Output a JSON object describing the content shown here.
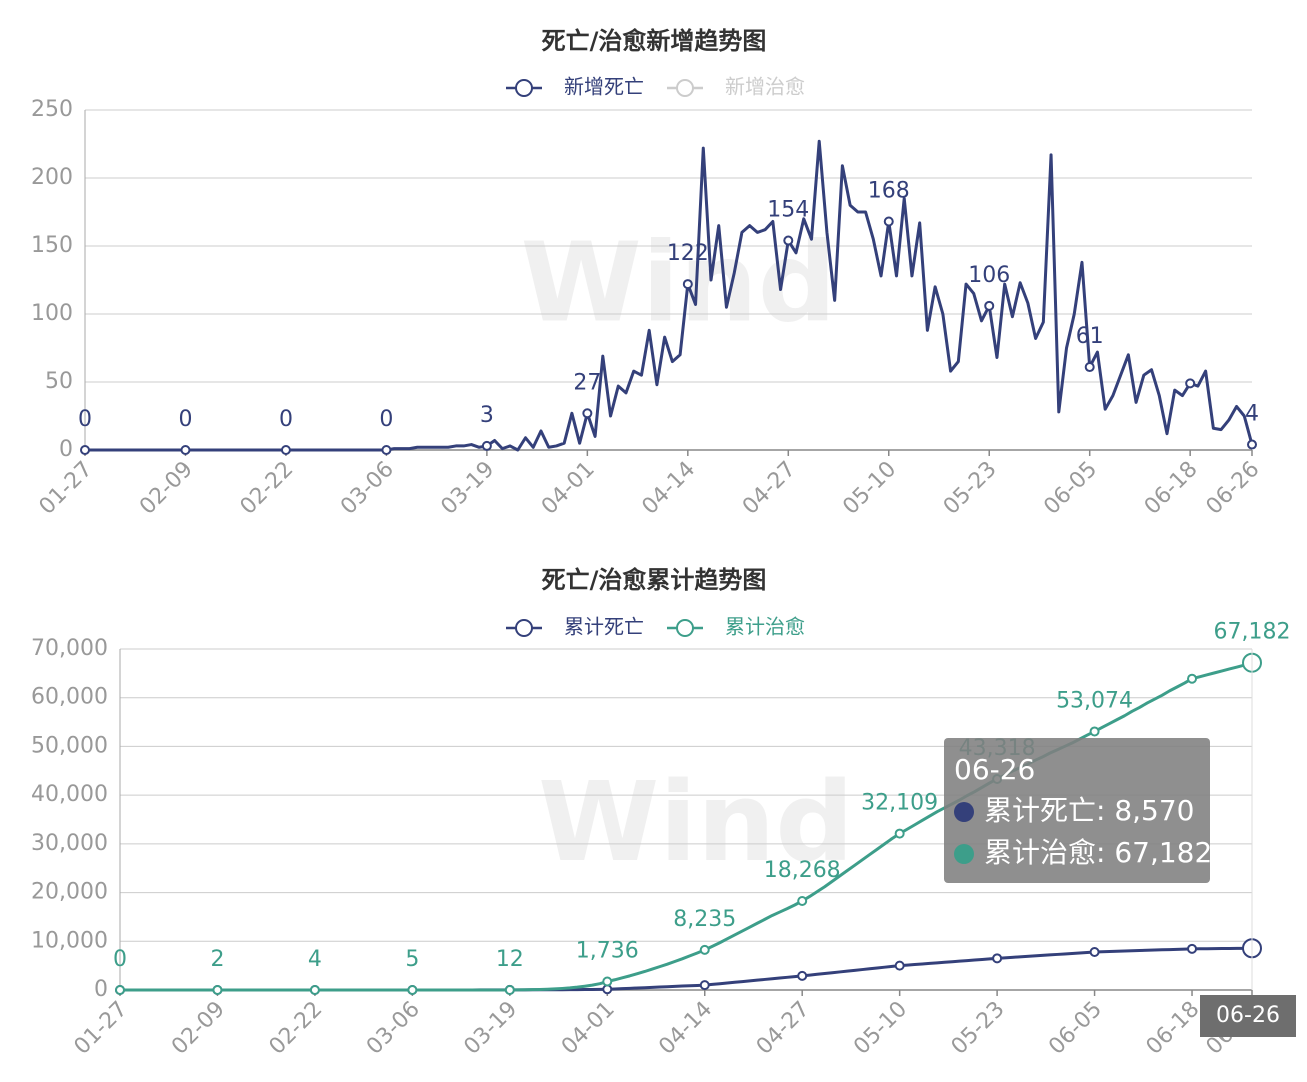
{
  "chart_data": [
    {
      "type": "line",
      "title": "死亡/治愈新增趋势图",
      "watermark": "Wind",
      "categories": [
        "01-27",
        null,
        null,
        null,
        null,
        null,
        null,
        null,
        null,
        null,
        null,
        null,
        null,
        "02-09",
        null,
        null,
        null,
        null,
        null,
        null,
        null,
        null,
        null,
        null,
        null,
        null,
        "02-22",
        null,
        null,
        null,
        null,
        null,
        null,
        null,
        null,
        null,
        null,
        null,
        null,
        "03-06",
        null,
        null,
        null,
        null,
        null,
        null,
        null,
        null,
        null,
        null,
        null,
        null,
        "03-19",
        null,
        null,
        null,
        null,
        null,
        null,
        null,
        null,
        null,
        null,
        null,
        null,
        "04-01",
        null,
        null,
        null,
        null,
        null,
        null,
        null,
        null,
        null,
        null,
        null,
        null,
        "04-14",
        null,
        null,
        null,
        null,
        null,
        null,
        null,
        null,
        null,
        null,
        null,
        null,
        "04-27",
        null,
        null,
        null,
        null,
        null,
        null,
        null,
        null,
        null,
        null,
        null,
        null,
        "05-10",
        null,
        null,
        null,
        null,
        null,
        null,
        null,
        null,
        null,
        null,
        null,
        null,
        "05-23",
        null,
        null,
        null,
        null,
        null,
        null,
        null,
        null,
        null,
        null,
        null,
        null,
        "06-05",
        null,
        null,
        null,
        null,
        null,
        null,
        null,
        null,
        null,
        null,
        null,
        null,
        "06-18",
        null,
        null,
        null,
        null,
        null,
        null,
        null,
        "06-26"
      ],
      "series": [
        {
          "name": "新增死亡",
          "color": "#34407a",
          "values": [
            0,
            0,
            0,
            0,
            0,
            0,
            0,
            0,
            0,
            0,
            0,
            0,
            0,
            0,
            0,
            0,
            0,
            0,
            0,
            0,
            0,
            0,
            0,
            0,
            0,
            0,
            0,
            0,
            0,
            0,
            0,
            0,
            0,
            0,
            0,
            0,
            0,
            0,
            0,
            0,
            1,
            1,
            1,
            2,
            2,
            2,
            2,
            2,
            3,
            3,
            4,
            2,
            3,
            7,
            1,
            3,
            0,
            9,
            2,
            14,
            2,
            3,
            5,
            27,
            5,
            27,
            10,
            69,
            25,
            47,
            42,
            58,
            55,
            88,
            48,
            83,
            65,
            70,
            122,
            107,
            222,
            125,
            165,
            105,
            130,
            160,
            165,
            160,
            162,
            168,
            118,
            154,
            145,
            170,
            155,
            227,
            160,
            110,
            209,
            180,
            175,
            175,
            155,
            128,
            168,
            128,
            185,
            128,
            167,
            88,
            120,
            100,
            58,
            65,
            122,
            115,
            95,
            106,
            68,
            122,
            98,
            123,
            108,
            82,
            94,
            217,
            28,
            75,
            100,
            138,
            61,
            72,
            30,
            40,
            55,
            70,
            35,
            55,
            59,
            40,
            12,
            44,
            40,
            49,
            47,
            58,
            16,
            15,
            22,
            32,
            25,
            4
          ],
          "value_labels": [
            "0",
            null,
            null,
            null,
            null,
            null,
            null,
            null,
            null,
            null,
            null,
            null,
            null,
            "0",
            null,
            null,
            null,
            null,
            null,
            null,
            null,
            null,
            null,
            null,
            null,
            null,
            "0",
            null,
            null,
            null,
            null,
            null,
            null,
            null,
            null,
            null,
            null,
            null,
            null,
            "0",
            null,
            null,
            null,
            null,
            null,
            null,
            null,
            null,
            null,
            null,
            null,
            null,
            "3",
            null,
            null,
            null,
            null,
            null,
            null,
            null,
            null,
            null,
            null,
            null,
            null,
            "27",
            null,
            null,
            null,
            null,
            null,
            null,
            null,
            null,
            null,
            null,
            null,
            null,
            "122",
            null,
            null,
            null,
            null,
            null,
            null,
            null,
            null,
            null,
            null,
            null,
            null,
            "154",
            null,
            null,
            null,
            null,
            null,
            null,
            null,
            null,
            null,
            null,
            null,
            null,
            "168",
            null,
            null,
            null,
            null,
            null,
            null,
            null,
            null,
            null,
            null,
            null,
            null,
            "106",
            null,
            null,
            null,
            null,
            null,
            null,
            null,
            null,
            null,
            null,
            null,
            null,
            "61",
            null,
            null,
            null,
            null,
            null,
            null,
            null,
            null,
            null,
            null,
            null,
            null,
            null,
            null,
            null,
            null,
            null,
            null,
            null,
            null,
            "4"
          ]
        },
        {
          "name": "新增治愈",
          "color": "#3d9e8a",
          "visible": false
        }
      ],
      "ylim": [
        0,
        250
      ],
      "yticks": [
        0,
        50,
        100,
        150,
        200,
        250
      ],
      "grid": true
    },
    {
      "type": "line",
      "title": "死亡/治愈累计趋势图",
      "watermark": "Wind",
      "categories": [
        "01-27",
        null,
        null,
        null,
        null,
        null,
        null,
        null,
        null,
        null,
        null,
        null,
        null,
        "02-09",
        null,
        null,
        null,
        null,
        null,
        null,
        null,
        null,
        null,
        null,
        null,
        null,
        "02-22",
        null,
        null,
        null,
        null,
        null,
        null,
        null,
        null,
        null,
        null,
        null,
        null,
        "03-06",
        null,
        null,
        null,
        null,
        null,
        null,
        null,
        null,
        null,
        null,
        null,
        null,
        "03-19",
        null,
        null,
        null,
        null,
        null,
        null,
        null,
        null,
        null,
        null,
        null,
        null,
        "04-01",
        null,
        null,
        null,
        null,
        null,
        null,
        null,
        null,
        null,
        null,
        null,
        null,
        "04-14",
        null,
        null,
        null,
        null,
        null,
        null,
        null,
        null,
        null,
        null,
        null,
        null,
        "04-27",
        null,
        null,
        null,
        null,
        null,
        null,
        null,
        null,
        null,
        null,
        null,
        null,
        "05-10",
        null,
        null,
        null,
        null,
        null,
        null,
        null,
        null,
        null,
        null,
        null,
        null,
        "05-23",
        null,
        null,
        null,
        null,
        null,
        null,
        null,
        null,
        null,
        null,
        null,
        null,
        "06-05",
        null,
        null,
        null,
        null,
        null,
        null,
        null,
        null,
        null,
        null,
        null,
        null,
        "06-18",
        null,
        null,
        null,
        null,
        null,
        null,
        null,
        "06-26"
      ],
      "series": [
        {
          "name": "累计死亡",
          "color": "#34407a",
          "values": [
            0,
            0,
            0,
            0,
            0,
            0,
            0,
            0,
            0,
            0,
            0,
            0,
            0,
            0,
            0,
            0,
            0,
            0,
            0,
            0,
            0,
            0,
            0,
            0,
            0,
            0,
            0,
            0,
            0,
            0,
            0,
            0,
            0,
            0,
            0,
            0,
            0,
            0,
            0,
            0,
            1,
            2,
            3,
            5,
            7,
            9,
            11,
            13,
            16,
            19,
            23,
            25,
            28,
            35,
            36,
            39,
            39,
            48,
            50,
            64,
            66,
            69,
            95,
            97,
            124,
            151,
            215,
            280,
            345,
            410,
            475,
            540,
            605,
            670,
            740,
            810,
            870,
            935,
            1000,
            1146,
            1292,
            1438,
            1584,
            1730,
            1876,
            2022,
            2168,
            2314,
            2460,
            2606,
            2752,
            2900,
            3062,
            3224,
            3386,
            3548,
            3710,
            3872,
            4034,
            4196,
            4358,
            4520,
            4682,
            4844,
            5000,
            5115,
            5230,
            5345,
            5460,
            5575,
            5690,
            5805,
            5920,
            6035,
            6150,
            6265,
            6380,
            6500,
            6600,
            6700,
            6800,
            6900,
            7000,
            7100,
            7200,
            7300,
            7400,
            7500,
            7600,
            7700,
            7800,
            7850,
            7900,
            7950,
            8000,
            8050,
            8100,
            8150,
            8200,
            8250,
            8300,
            8350,
            8400,
            8450,
            8465,
            8480,
            8495,
            8510,
            8525,
            8540,
            8555,
            8570
          ]
        },
        {
          "name": "累计治愈",
          "color": "#3d9e8a",
          "values": [
            0,
            0,
            0,
            0,
            0,
            0,
            0,
            0,
            0,
            1,
            1,
            1,
            1,
            2,
            2,
            2,
            2,
            2,
            3,
            3,
            3,
            3,
            3,
            3,
            4,
            4,
            4,
            4,
            4,
            4,
            4,
            4,
            4,
            5,
            5,
            5,
            5,
            5,
            5,
            5,
            5,
            6,
            6,
            7,
            7,
            8,
            8,
            9,
            9,
            10,
            11,
            11,
            12,
            20,
            40,
            70,
            110,
            160,
            230,
            320,
            430,
            580,
            780,
            1000,
            1300,
            1736,
            2100,
            2500,
            2900,
            3350,
            3800,
            4300,
            4800,
            5300,
            5850,
            6400,
            7000,
            7600,
            8235,
            8950,
            9700,
            10500,
            11300,
            12100,
            12900,
            13700,
            14500,
            15300,
            16000,
            16700,
            17450,
            18268,
            19200,
            20200,
            21200,
            22300,
            23400,
            24500,
            25600,
            26700,
            27800,
            28900,
            30000,
            31100,
            32109,
            33000,
            33900,
            34800,
            35700,
            36600,
            37400,
            38200,
            39000,
            39900,
            40700,
            41600,
            42500,
            43318,
            44100,
            44900,
            45600,
            46300,
            47100,
            47800,
            48600,
            49300,
            50000,
            50700,
            51500,
            52300,
            53074,
            53900,
            54700,
            55500,
            56300,
            57200,
            58000,
            58900,
            59700,
            60500,
            61400,
            62200,
            63000,
            63900,
            64300,
            64700,
            65100,
            65500,
            65900,
            66300,
            66700,
            67182
          ],
          "value_labels": [
            "0",
            null,
            null,
            null,
            null,
            null,
            null,
            null,
            null,
            null,
            null,
            null,
            null,
            "2",
            null,
            null,
            null,
            null,
            null,
            null,
            null,
            null,
            null,
            null,
            null,
            null,
            "4",
            null,
            null,
            null,
            null,
            null,
            null,
            null,
            null,
            null,
            null,
            null,
            null,
            "5",
            null,
            null,
            null,
            null,
            null,
            null,
            null,
            null,
            null,
            null,
            null,
            null,
            "12",
            null,
            null,
            null,
            null,
            null,
            null,
            null,
            null,
            null,
            null,
            null,
            null,
            "1,736",
            null,
            null,
            null,
            null,
            null,
            null,
            null,
            null,
            null,
            null,
            null,
            null,
            "8,235",
            null,
            null,
            null,
            null,
            null,
            null,
            null,
            null,
            null,
            null,
            null,
            null,
            "18,268",
            null,
            null,
            null,
            null,
            null,
            null,
            null,
            null,
            null,
            null,
            null,
            null,
            "32,109",
            null,
            null,
            null,
            null,
            null,
            null,
            null,
            null,
            null,
            null,
            null,
            null,
            "43,318",
            null,
            null,
            null,
            null,
            null,
            null,
            null,
            null,
            null,
            null,
            null,
            null,
            "53,074",
            null,
            null,
            null,
            null,
            null,
            null,
            null,
            null,
            null,
            null,
            null,
            null,
            null,
            null,
            null,
            null,
            null,
            null,
            null,
            null,
            "67,182"
          ]
        }
      ],
      "ylim": [
        0,
        70000
      ],
      "yticks": [
        0,
        {
          "value": 10000,
          "label": "10,000"
        },
        {
          "value": 20000,
          "label": "20,000"
        },
        {
          "value": 30000,
          "label": "30,000"
        },
        {
          "value": 40000,
          "label": "40,000"
        },
        {
          "value": 50000,
          "label": "50,000"
        },
        {
          "value": 60000,
          "label": "60,000"
        },
        {
          "value": 70000,
          "label": "70,000"
        }
      ],
      "grid": true,
      "tooltip": {
        "title": "06-26",
        "items": [
          "累计死亡: 8,570",
          "累计治愈: 67,182"
        ],
        "axis_label": "06-26"
      }
    }
  ]
}
